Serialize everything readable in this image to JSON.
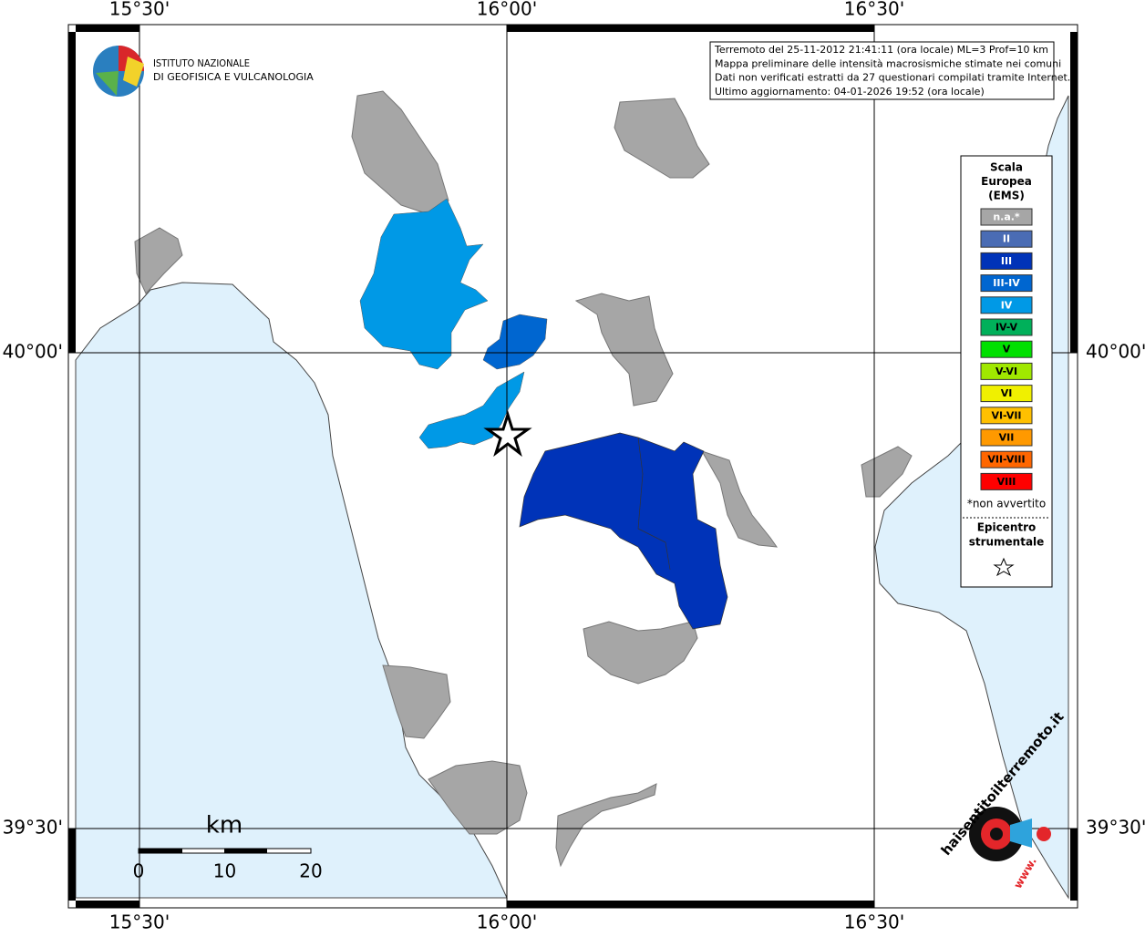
{
  "map": {
    "grid_lon_labels": [
      "15°30'",
      "16°00'",
      "16°30'"
    ],
    "grid_lat_labels": [
      "40°00'",
      "39°30'"
    ],
    "logo": {
      "line1": "ISTITUTO NAZIONALE",
      "line2": "DI GEOFISICA E VULCANOLOGIA"
    },
    "info": [
      "Terremoto del 25-11-2012 21:41:11 (ora locale) ML=3 Prof=10 km",
      "Mappa preliminare delle intensità macrosismiche stimate nei comuni",
      "Dati non verificati estratti da 27 questionari compilati tramite Internet.",
      "Ultimo aggiornamento: 04-01-2026 19:52 (ora locale)"
    ],
    "legend": {
      "title": [
        "Scala",
        "Europea",
        "(EMS)"
      ],
      "items": [
        {
          "label": "n.a.*",
          "color": "#a6a6a6"
        },
        {
          "label": "II",
          "color": "#4a6cb4"
        },
        {
          "label": "III",
          "color": "#0033b8"
        },
        {
          "label": "III-IV",
          "color": "#0066d0"
        },
        {
          "label": "IV",
          "color": "#0099e6"
        },
        {
          "label": "IV-V",
          "color": "#00b05a"
        },
        {
          "label": "V",
          "color": "#00e000"
        },
        {
          "label": "V-VI",
          "color": "#a0e800"
        },
        {
          "label": "VI",
          "color": "#f0f000"
        },
        {
          "label": "VI-VII",
          "color": "#ffc000"
        },
        {
          "label": "VII",
          "color": "#ff9900"
        },
        {
          "label": "VII-VIII",
          "color": "#ff6600"
        },
        {
          "label": "VIII",
          "color": "#ff0000"
        }
      ],
      "note": "*non avvertito",
      "epicenter": [
        "Epicentro",
        "strumentale"
      ]
    },
    "scale_bar": {
      "unit": "km",
      "ticks": [
        0,
        10,
        20
      ]
    },
    "site_logo": {
      "text": "haisentitoilterremoto.it",
      "www": "www."
    }
  }
}
